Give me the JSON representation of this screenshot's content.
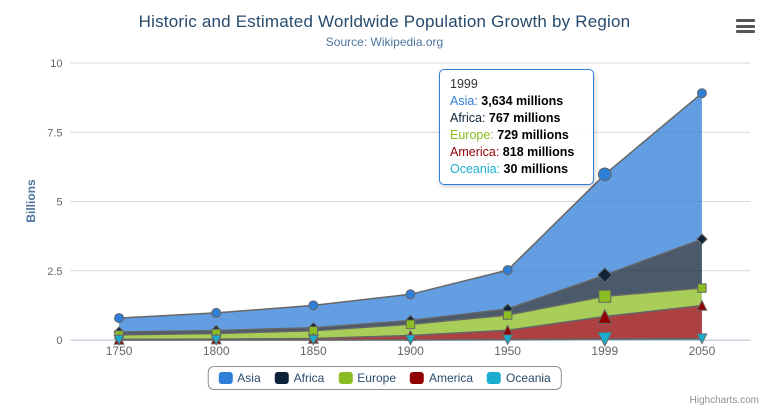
{
  "chart_data": {
    "type": "area",
    "stacking": "normal",
    "title": "Historic and Estimated Worldwide Population Growth by Region",
    "subtitle": "Source: Wikipedia.org",
    "categories": [
      "1750",
      "1800",
      "1850",
      "1900",
      "1950",
      "1999",
      "2050"
    ],
    "xlabel": "",
    "ylabel": "Billions",
    "ylim": [
      0,
      10
    ],
    "yticks": [
      "0",
      "2.5",
      "5",
      "7.5",
      "10"
    ],
    "grid": true,
    "legend_position": "bottom",
    "values_unit": "millions",
    "fill_opacity": 0.75,
    "line_color": "#666666",
    "axis_line_color": "#c0d0e0",
    "gridline_color": "#d8d8d8",
    "label_color": "#666666",
    "hover_index": 5,
    "series": [
      {
        "name": "Asia",
        "color": "#2f7ed8",
        "marker": "circle",
        "values": [
          502,
          635,
          809,
          947,
          1402,
          3634,
          5268
        ]
      },
      {
        "name": "Africa",
        "color": "#0d233a",
        "marker": "diamond",
        "values": [
          106,
          107,
          111,
          133,
          221,
          767,
          1766
        ]
      },
      {
        "name": "Europe",
        "color": "#8bbc21",
        "marker": "square",
        "values": [
          163,
          203,
          276,
          408,
          547,
          729,
          628
        ]
      },
      {
        "name": "America",
        "color": "#910000",
        "marker": "triangle",
        "values": [
          18,
          31,
          54,
          156,
          339,
          818,
          1201
        ]
      },
      {
        "name": "Oceania",
        "color": "#1aadce",
        "marker": "triangle-down",
        "values": [
          2,
          2,
          2,
          6,
          13,
          30,
          46
        ]
      }
    ]
  },
  "tooltip": {
    "header": "1999",
    "border_color": "#2f7ed8",
    "rows": [
      {
        "name": "Asia",
        "value": "3,634",
        "unit": "millions",
        "color": "#2f7ed8"
      },
      {
        "name": "Africa",
        "value": "767",
        "unit": "millions",
        "color": "#0d233a"
      },
      {
        "name": "Europe",
        "value": "729",
        "unit": "millions",
        "color": "#8bbc21"
      },
      {
        "name": "America",
        "value": "818",
        "unit": "millions",
        "color": "#910000"
      },
      {
        "name": "Oceania",
        "value": "30",
        "unit": "millions",
        "color": "#1aadce"
      }
    ]
  },
  "credits": {
    "label": "Highcharts.com"
  }
}
